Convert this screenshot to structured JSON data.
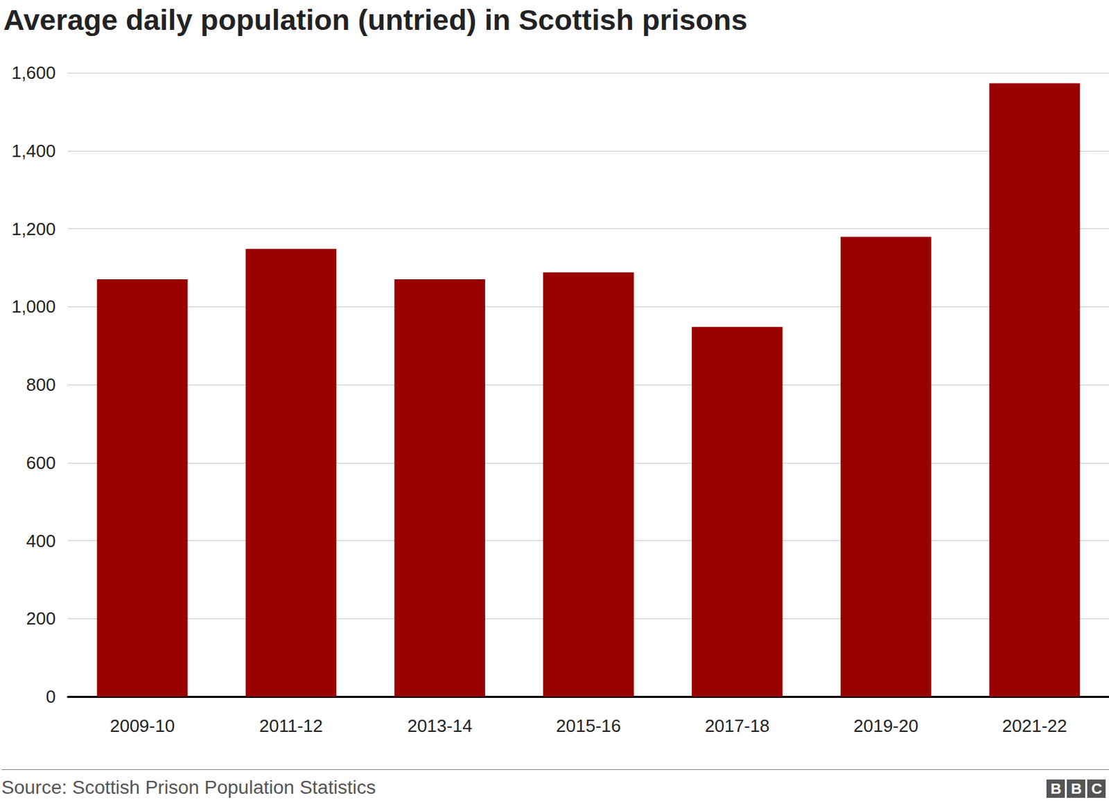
{
  "chart_data": {
    "type": "bar",
    "title": "Average daily population (untried) in Scottish prisons",
    "categories": [
      "2009-10",
      "2011-12",
      "2013-14",
      "2015-16",
      "2017-18",
      "2019-20",
      "2021-22"
    ],
    "values": [
      1070,
      1148,
      1070,
      1088,
      948,
      1179,
      1573
    ],
    "color": "#990000",
    "ylim": [
      0,
      1600
    ],
    "yticks": [
      0,
      200,
      400,
      600,
      800,
      {
        "value": 1000,
        "label": "1,000"
      },
      {
        "value": 1200,
        "label": "1,200"
      },
      {
        "value": 1400,
        "label": "1,400"
      },
      {
        "value": 1600,
        "label": "1,600"
      }
    ],
    "grid": true,
    "source": "Source: Scottish Prison Population Statistics",
    "logo": "BBC"
  }
}
